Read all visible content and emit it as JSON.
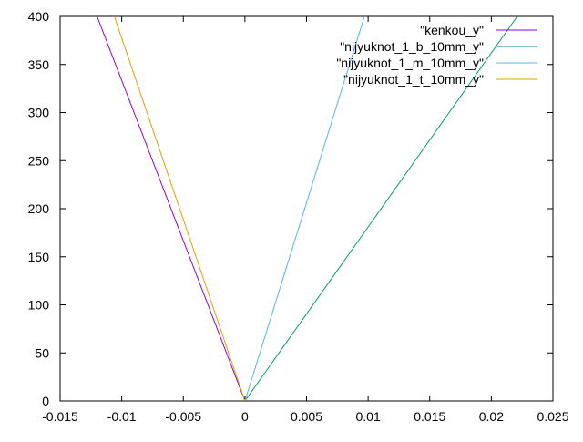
{
  "chart_data": {
    "type": "line",
    "title": "",
    "xlabel": "",
    "ylabel": "",
    "xlim": [
      -0.015,
      0.025
    ],
    "ylim": [
      0,
      400
    ],
    "x_ticks": [
      -0.015,
      -0.01,
      -0.005,
      0,
      0.005,
      0.01,
      0.015,
      0.02,
      0.025
    ],
    "x_tick_labels": [
      "-0.015",
      "-0.01",
      "-0.005",
      "0",
      "0.005",
      "0.01",
      "0.015",
      "0.02",
      "0.025"
    ],
    "y_ticks": [
      0,
      50,
      100,
      150,
      200,
      250,
      300,
      350,
      400
    ],
    "y_tick_labels": [
      "0",
      "50",
      "100",
      "150",
      "200",
      "250",
      "300",
      "350",
      "400"
    ],
    "grid": false,
    "legend_position": "top-right",
    "series": [
      {
        "name": "\"kenkou_y\"",
        "color": "#9400d3",
        "points": [
          [
            0,
            0
          ],
          [
            -0.012,
            400
          ]
        ]
      },
      {
        "name": "\"nijyuknot_1_b_10mm_y\"",
        "color": "#009e73",
        "points": [
          [
            0,
            0
          ],
          [
            0.0221,
            400
          ]
        ]
      },
      {
        "name": "\"nijyuknot_1_m_10mm_y\"",
        "color": "#56b4e9",
        "points": [
          [
            0,
            0
          ],
          [
            0.0097,
            400
          ]
        ]
      },
      {
        "name": "\"nijyuknot_1_t_10mm_y\"",
        "color": "#e69f00",
        "points": [
          [
            0,
            0
          ],
          [
            -0.0106,
            400
          ]
        ]
      }
    ]
  }
}
